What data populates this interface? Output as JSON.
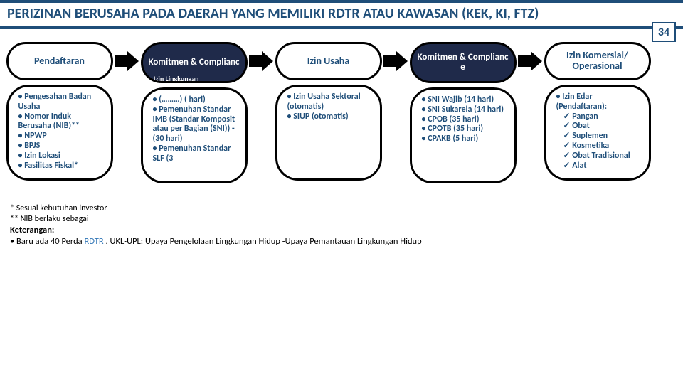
{
  "title": "PERIZINAN BERUSAHA PADA DAERAH YANG MEMILIKI RDTR ATAU KAWASAN (KEK, KI, FTZ)",
  "page_number": "34",
  "colors": {
    "brand": "#1f4e79",
    "head_dark_bg": "#1f2a4a",
    "outline": "#000000",
    "background": "#ffffff"
  },
  "steps": [
    {
      "head": "Pendaftaran",
      "is_compliance": false,
      "body_bullets": [
        {
          "text": "Pengesahan Badan Usaha"
        },
        {
          "text": "Nomor Induk Berusaha (NIB)**"
        },
        {
          "text": "NPWP"
        },
        {
          "text": "BPJS"
        },
        {
          "text": "Izin Lokasi"
        },
        {
          "text": "Fasilitas Fiskal*"
        }
      ]
    },
    {
      "head": "Komitmen & Complianc",
      "is_compliance": true,
      "extra_head_line": "• Izin Lingkungan",
      "body_bullets": [
        {
          "text": "(………) ( hari)"
        },
        {
          "text": "Pemenuhan Standar IMB (Standar Komposit atau per Bagian (SNI)) - (30 hari)"
        },
        {
          "text": "Pemenuhan Standar SLF (3"
        }
      ]
    },
    {
      "head": "Izin Usaha",
      "is_compliance": false,
      "body_bullets": [
        {
          "text": "Izin Usaha Sektoral (otomatis)"
        },
        {
          "text": "SIUP (otomatis)"
        }
      ]
    },
    {
      "head": "Komitmen & Complianc e",
      "is_compliance": true,
      "body_bullets": [
        {
          "text": "SNI Wajib (14 hari)"
        },
        {
          "text": "SNI Sukarela (14 hari)"
        },
        {
          "text": "CPOB (35 hari)"
        },
        {
          "text": "CPOTB (35 hari)"
        },
        {
          "text": "CPAKB (5 hari)"
        }
      ]
    },
    {
      "head": "Izin Komersial/ Operasional",
      "is_compliance": false,
      "body_bullets": [
        {
          "text": "Izin Edar (Pendaftaran):",
          "subs": [
            "Pangan",
            "Obat",
            "Suplemen",
            "Kosmetika",
            "Obat Tradisional",
            "Alat"
          ]
        }
      ]
    }
  ],
  "notes": {
    "footnote1": "*  Sesuai kebutuhan investor",
    "footnote2": "** NIB berlaku sebagai",
    "keterangan_label": "Keterangan:",
    "keterangan_text_prefix": "• Baru ada 40 Perda ",
    "rdtr_link_text": "RDTR",
    "keterangan_text_suffix": " .  UKL-UPL: Upaya Pengelolaan Lingkungan Hidup -Upaya Pemantauan Lingkungan Hidup"
  }
}
